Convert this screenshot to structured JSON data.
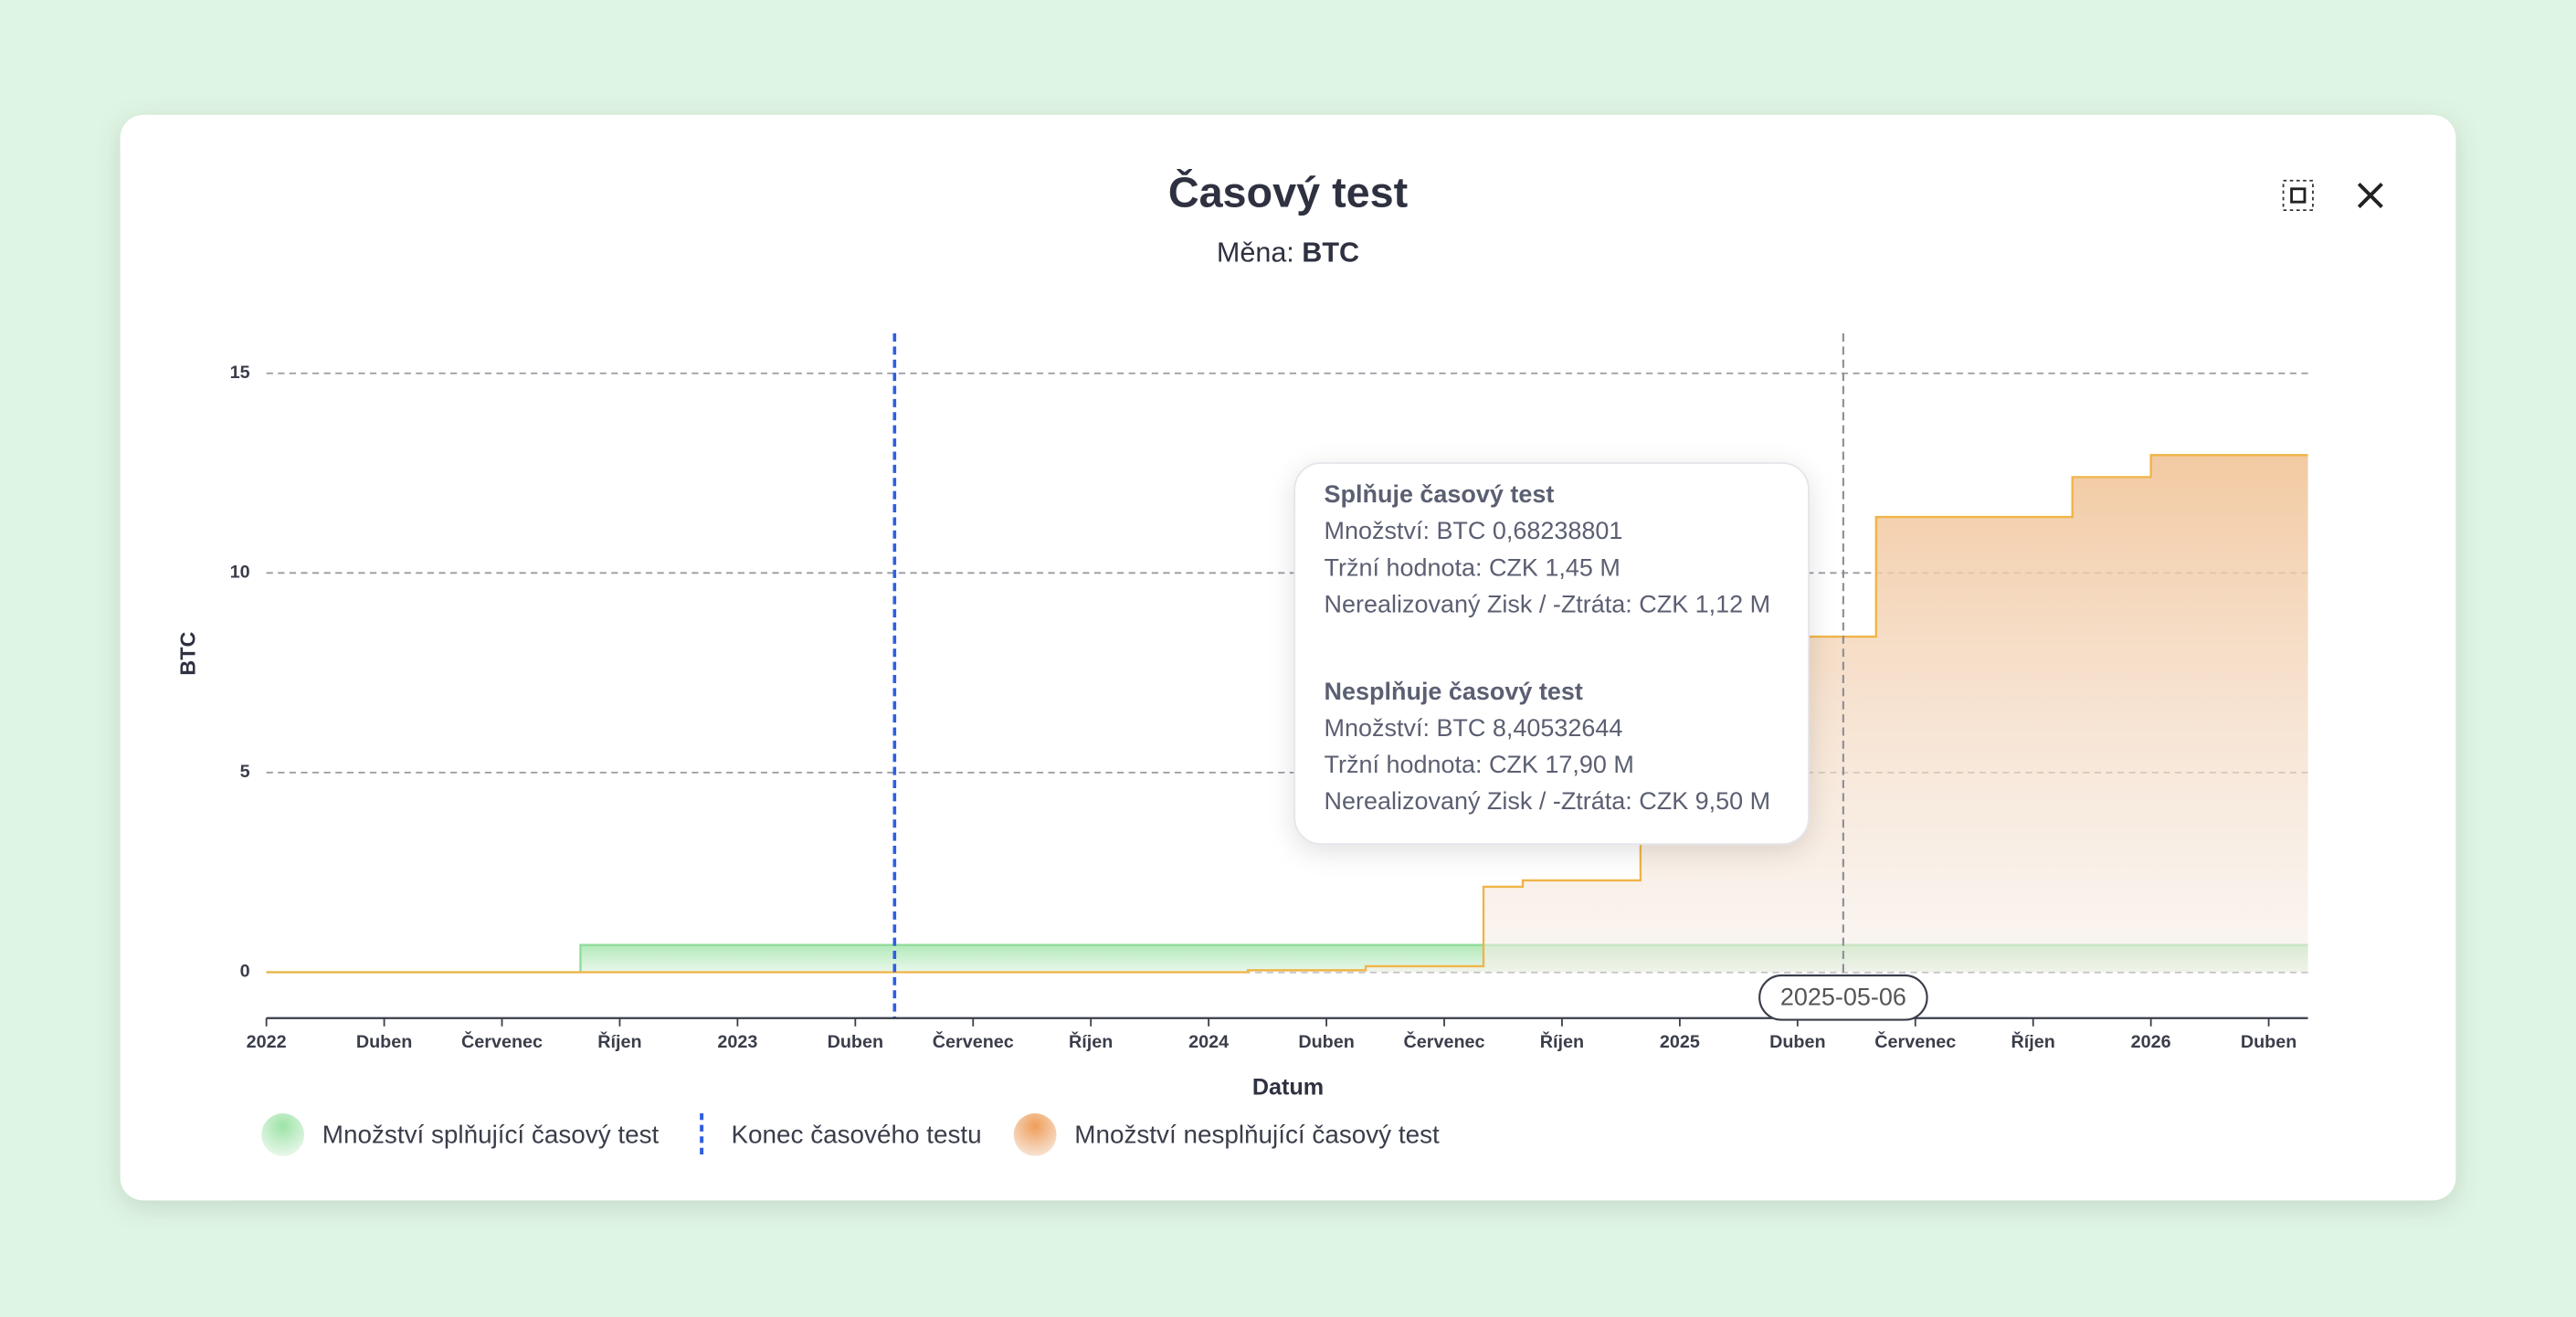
{
  "chart_data": {
    "type": "area",
    "step": true,
    "title": "Časový test",
    "subtitle_label": "Měna:",
    "currency": "BTC",
    "x_label": "Datum",
    "y_label": "BTC",
    "x": [
      "2022-01",
      "2022-09",
      "2024-02",
      "2024-05",
      "2024-08",
      "2024-09",
      "2024-12",
      "2025-06",
      "2025-11",
      "2026-01",
      "2026-05"
    ],
    "series": [
      {
        "name": "Množství splňující časový test",
        "color": "#8fdc9a",
        "values": [
          0,
          0.68238801,
          0.68238801,
          0.68238801,
          0.68238801,
          0.68238801,
          0.68238801,
          0.68238801,
          0.68238801,
          0.68238801,
          0.68238801
        ]
      },
      {
        "name": "Množství nesplňující časový test",
        "color": "#f0b447",
        "values": [
          0,
          0,
          0.05,
          0.15,
          2.14,
          2.3,
          8.40532644,
          11.4,
          12.4,
          12.95,
          12.95
        ]
      }
    ],
    "xlim": [
      "2022-01",
      "2026-05"
    ],
    "xticks": [
      {
        "value": "2022-01",
        "label": "2022"
      },
      {
        "value": "2022-04",
        "label": "Duben"
      },
      {
        "value": "2022-07",
        "label": "Červenec"
      },
      {
        "value": "2022-10",
        "label": "Říjen"
      },
      {
        "value": "2023-01",
        "label": "2023"
      },
      {
        "value": "2023-04",
        "label": "Duben"
      },
      {
        "value": "2023-07",
        "label": "Červenec"
      },
      {
        "value": "2023-10",
        "label": "Říjen"
      },
      {
        "value": "2024-01",
        "label": "2024"
      },
      {
        "value": "2024-04",
        "label": "Duben"
      },
      {
        "value": "2024-07",
        "label": "Červenec"
      },
      {
        "value": "2024-10",
        "label": "Říjen"
      },
      {
        "value": "2025-01",
        "label": "2025"
      },
      {
        "value": "2025-04",
        "label": "Duben"
      },
      {
        "value": "2025-07",
        "label": "Červenec"
      },
      {
        "value": "2025-10",
        "label": "Říjen"
      },
      {
        "value": "2026-01",
        "label": "2026"
      },
      {
        "value": "2026-04",
        "label": "Duben"
      }
    ],
    "ylim": [
      -1.15,
      16
    ],
    "yticks": [
      0,
      5,
      10,
      15
    ],
    "grid": true,
    "end_of_test": {
      "name": "Konec časového testu",
      "x": "2023-05",
      "color": "#2f5fe0"
    },
    "hover": {
      "x": "2025-05-06"
    },
    "tooltip": {
      "sections": [
        {
          "title": "Splňuje časový test",
          "lines": [
            "Množství: BTC 0,68238801",
            "Tržní hodnota: CZK 1,45 M",
            "Nerealizovaný Zisk / -Ztráta: CZK 1,12 M"
          ]
        },
        {
          "title": "Nesplňuje časový test",
          "lines": [
            "Množství: BTC 8,40532644",
            "Tržní hodnota: CZK 17,90 M",
            "Nerealizovaný Zisk / -Ztráta: CZK 9,50 M"
          ]
        }
      ]
    }
  }
}
